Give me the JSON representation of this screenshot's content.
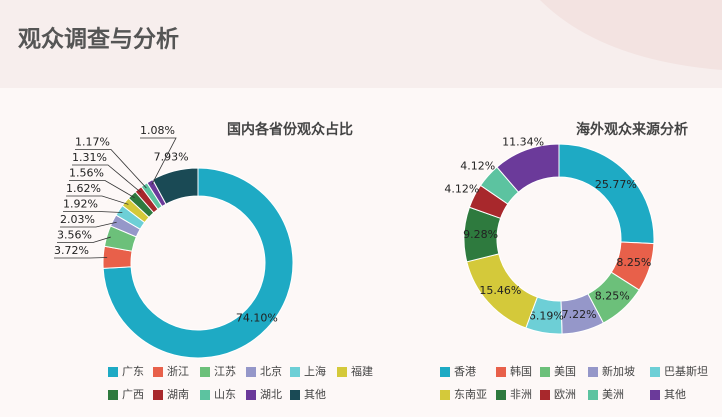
{
  "title": "观众调查与分析",
  "chart_data": [
    {
      "type": "donut",
      "title": "国内各省份观众占比",
      "categories": [
        "广东",
        "浙江",
        "江苏",
        "北京",
        "上海",
        "福建",
        "广西",
        "湖南",
        "山东",
        "湖北",
        "其他"
      ],
      "values": [
        74.1,
        3.72,
        3.56,
        2.03,
        1.92,
        1.62,
        1.56,
        1.31,
        1.17,
        1.08,
        7.93
      ],
      "value_labels": [
        "74.10%",
        "3.72%",
        "3.56%",
        "2.03%",
        "1.92%",
        "1.62%",
        "1.56%",
        "1.31%",
        "1.17%",
        "1.08%",
        "7.93%"
      ],
      "colors": [
        "#1eaac4",
        "#e8604a",
        "#6cc07a",
        "#9597c9",
        "#6dcfd6",
        "#d4c93a",
        "#2e7a3e",
        "#a8282c",
        "#5cc3a0",
        "#6b3a9a",
        "#1a4a55"
      ]
    },
    {
      "type": "donut",
      "title": "海外观众来源分析",
      "categories": [
        "香港",
        "韩国",
        "美国",
        "新加坡",
        "巴基斯坦",
        "东南亚",
        "非洲",
        "欧洲",
        "美洲",
        "其他"
      ],
      "values": [
        25.77,
        8.25,
        8.25,
        7.22,
        6.19,
        15.46,
        9.28,
        4.12,
        4.12,
        11.34
      ],
      "value_labels": [
        "25.77%",
        "8.25%",
        "8.25%",
        "7.22%",
        "6.19%",
        "15.46%",
        "9.28%",
        "4.12%",
        "4.12%",
        "11.34%"
      ],
      "colors": [
        "#1eaac4",
        "#e8604a",
        "#6cc07a",
        "#9597c9",
        "#6dcfd6",
        "#d4c93a",
        "#2e7a3e",
        "#a8282c",
        "#5cc3a0",
        "#6b3a9a"
      ]
    }
  ]
}
